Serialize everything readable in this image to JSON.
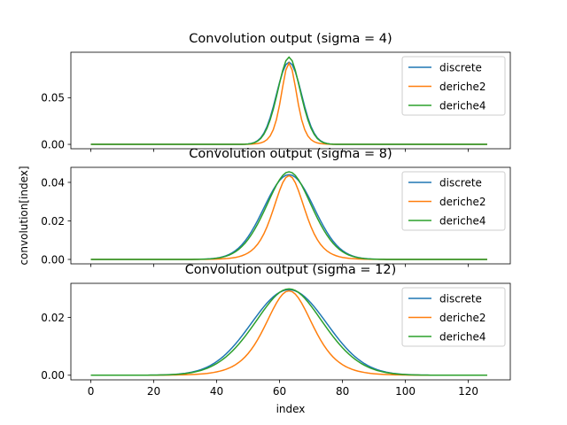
{
  "chart_data": [
    {
      "type": "line",
      "title": "Convolution output (sigma = 4)",
      "xlabel": "",
      "ylabel": "",
      "xlim": [
        -6.35,
        133.35
      ],
      "ylim": [
        -0.0047,
        0.0987
      ],
      "xticks": [
        0,
        20,
        40,
        60,
        80,
        100,
        120
      ],
      "yticks": [
        0.0,
        0.05
      ],
      "ytick_labels": [
        "0.00",
        "0.05"
      ],
      "show_xtick_labels": false,
      "sigma": 4,
      "center": 63,
      "legend": "top-right",
      "series": [
        {
          "name": "discrete",
          "color": "#1f77b4",
          "shape": "gauss",
          "peak": 0.0881
        },
        {
          "name": "deriche2",
          "color": "#ff7f0e",
          "shape": "sech",
          "peak": 0.087
        },
        {
          "name": "deriche4",
          "color": "#2ca02c",
          "shape": "mix",
          "peak": 0.0935
        }
      ]
    },
    {
      "type": "line",
      "title": "Convolution output (sigma = 8)",
      "xlabel": "",
      "ylabel": "convolution[index]",
      "xlim": [
        -6.35,
        133.35
      ],
      "ylim": [
        -0.0023,
        0.0478
      ],
      "xticks": [
        0,
        20,
        40,
        60,
        80,
        100,
        120
      ],
      "yticks": [
        0.0,
        0.02,
        0.04
      ],
      "ytick_labels": [
        "0.00",
        "0.02",
        "0.04"
      ],
      "show_xtick_labels": false,
      "sigma": 8,
      "center": 63,
      "legend": "top-right",
      "series": [
        {
          "name": "discrete",
          "color": "#1f77b4",
          "shape": "gauss",
          "peak": 0.044
        },
        {
          "name": "deriche2",
          "color": "#ff7f0e",
          "shape": "sech",
          "peak": 0.0435
        },
        {
          "name": "deriche4",
          "color": "#2ca02c",
          "shape": "mix",
          "peak": 0.0455
        }
      ]
    },
    {
      "type": "line",
      "title": "Convolution output (sigma = 12)",
      "xlabel": "index",
      "ylabel": "",
      "xlim": [
        -6.35,
        133.35
      ],
      "ylim": [
        -0.0016,
        0.0318
      ],
      "xticks": [
        0,
        20,
        40,
        60,
        80,
        100,
        120
      ],
      "yticks": [
        0.0,
        0.02
      ],
      "ytick_labels": [
        "0.00",
        "0.02"
      ],
      "show_xtick_labels": true,
      "sigma": 12,
      "center": 63,
      "legend": "top-right",
      "series": [
        {
          "name": "discrete",
          "color": "#1f77b4",
          "shape": "gauss",
          "peak": 0.0296
        },
        {
          "name": "deriche2",
          "color": "#ff7f0e",
          "shape": "sech",
          "peak": 0.0292
        },
        {
          "name": "deriche4",
          "color": "#2ca02c",
          "shape": "mix",
          "peak": 0.0299
        }
      ]
    }
  ]
}
